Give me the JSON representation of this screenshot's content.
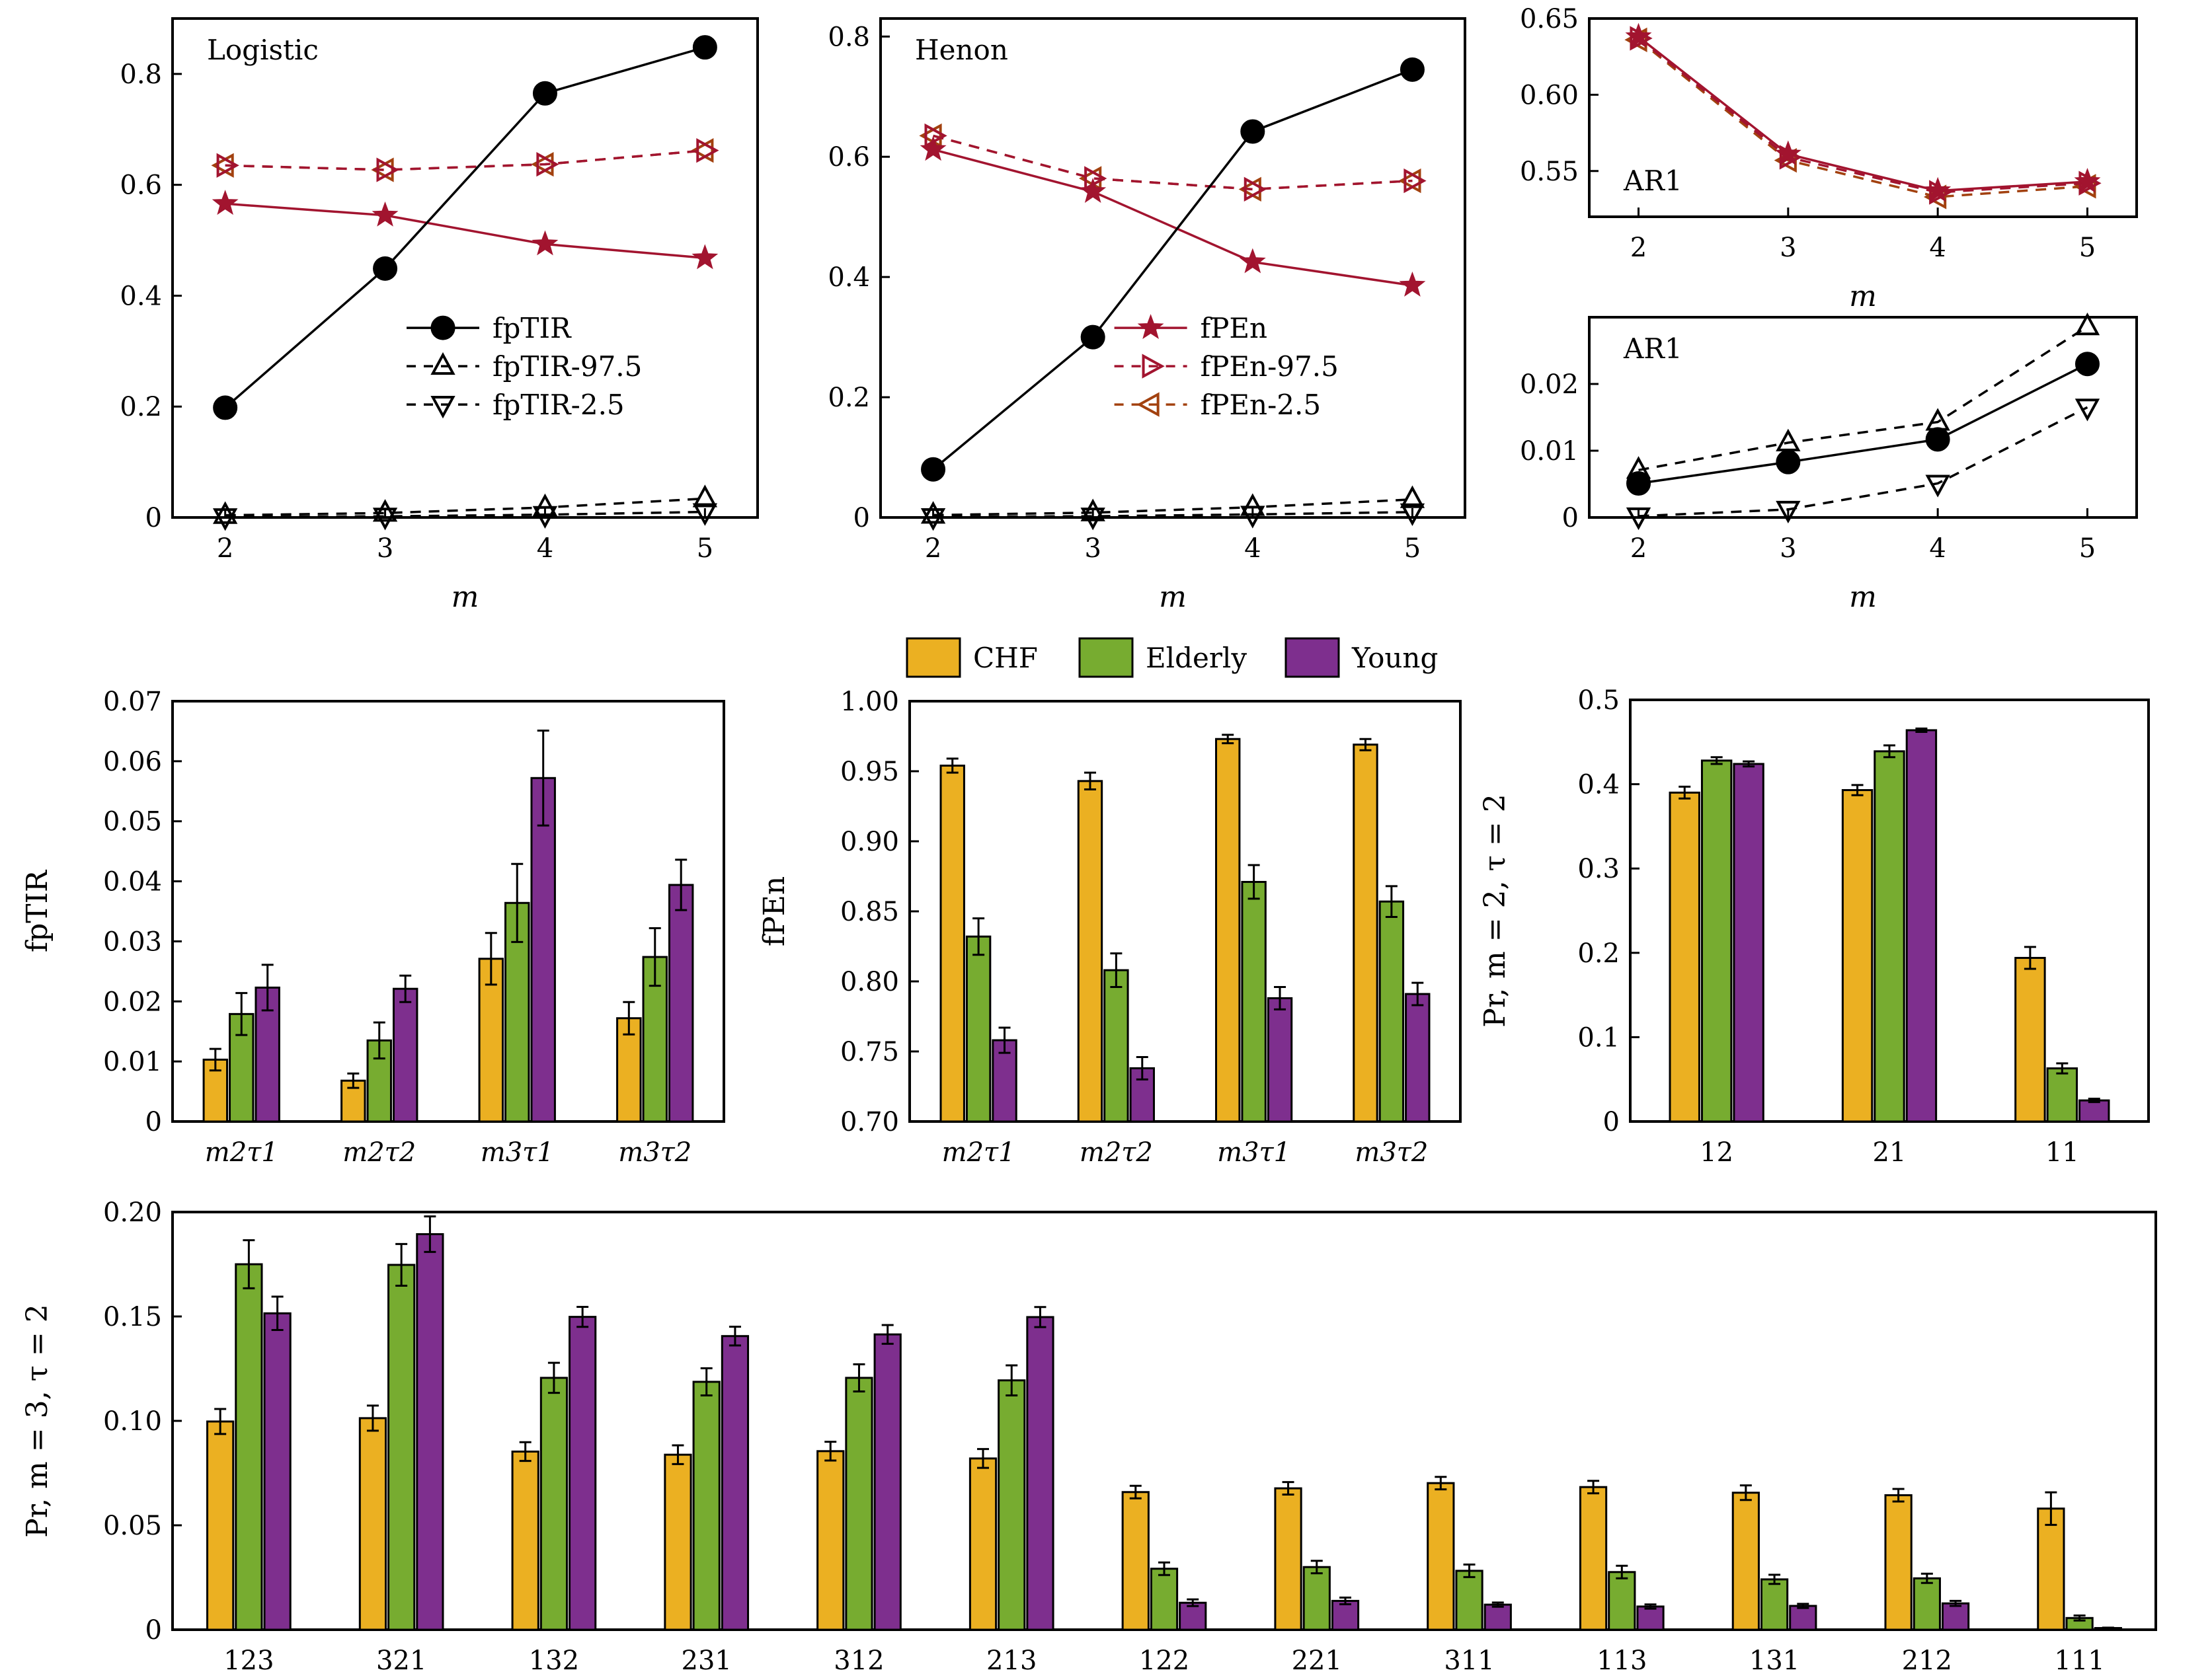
{
  "colors": {
    "CHF": "#EBB022",
    "Elderly": "#77AC30",
    "Young": "#7E2F8E",
    "fpTIR": "#000000",
    "fPEn": "#A2142F",
    "fPEn_bound": "#A2410F"
  },
  "chart_data": [
    {
      "id": "logistic",
      "type": "line",
      "panel_label": "Logistic",
      "xlabel": "m",
      "ylabel": "",
      "x": [
        2,
        3,
        4,
        5
      ],
      "xticks": [
        "2",
        "3",
        "4",
        "5"
      ],
      "ylim": [
        0,
        0.9
      ],
      "yticks": [
        0,
        0.2,
        0.4,
        0.6,
        0.8
      ],
      "yticklabels": [
        "0",
        "0.2",
        "0.4",
        "0.6",
        "0.8"
      ],
      "legend": {
        "placement": "center-right",
        "entries": [
          "fpTIR",
          "fpTIR-97.5",
          "fpTIR-2.5"
        ]
      },
      "series": [
        {
          "name": "fpTIR",
          "style": "solid",
          "marker": "circle",
          "color": "#000000",
          "values": [
            0.198,
            0.449,
            0.765,
            0.848
          ]
        },
        {
          "name": "fpTIR-97.5",
          "style": "dashed",
          "marker": "triangle-up",
          "color": "#000000",
          "values": [
            0.004,
            0.008,
            0.018,
            0.034
          ]
        },
        {
          "name": "fpTIR-2.5",
          "style": "dashed",
          "marker": "triangle-down",
          "color": "#000000",
          "values": [
            0.001,
            0.002,
            0.005,
            0.01
          ]
        },
        {
          "name": "fPEn",
          "style": "solid",
          "marker": "star",
          "color": "#A2142F",
          "values": [
            0.566,
            0.545,
            0.493,
            0.468
          ]
        },
        {
          "name": "fPEn-97.5",
          "style": "dashed",
          "marker": "triangle-right",
          "color": "#A2142F",
          "values": [
            0.635,
            0.627,
            0.637,
            0.662
          ]
        },
        {
          "name": "fPEn-2.5",
          "style": "dashed",
          "marker": "triangle-left",
          "color": "#A2410F",
          "values": [
            0.635,
            0.627,
            0.637,
            0.662
          ]
        }
      ]
    },
    {
      "id": "henon",
      "type": "line",
      "panel_label": "Henon",
      "xlabel": "m",
      "ylabel": "",
      "x": [
        2,
        3,
        4,
        5
      ],
      "xticks": [
        "2",
        "3",
        "4",
        "5"
      ],
      "ylim": [
        0,
        0.83
      ],
      "yticks": [
        0,
        0.2,
        0.4,
        0.6,
        0.8
      ],
      "yticklabels": [
        "0",
        "0.2",
        "0.4",
        "0.6",
        "0.8"
      ],
      "legend": {
        "placement": "center-right",
        "entries": [
          "fPEn",
          "fPEn-97.5",
          "fPEn-2.5"
        ]
      },
      "series": [
        {
          "name": "fpTIR",
          "style": "solid",
          "marker": "circle",
          "color": "#000000",
          "values": [
            0.08,
            0.3,
            0.642,
            0.745
          ]
        },
        {
          "name": "fpTIR-97.5",
          "style": "dashed",
          "marker": "triangle-up",
          "color": "#000000",
          "values": [
            0.004,
            0.008,
            0.017,
            0.03
          ]
        },
        {
          "name": "fpTIR-2.5",
          "style": "dashed",
          "marker": "triangle-down",
          "color": "#000000",
          "values": [
            0.001,
            0.002,
            0.005,
            0.009
          ]
        },
        {
          "name": "fPEn",
          "style": "solid",
          "marker": "star",
          "color": "#A2142F",
          "values": [
            0.612,
            0.542,
            0.425,
            0.386
          ]
        },
        {
          "name": "fPEn-97.5",
          "style": "dashed",
          "marker": "triangle-right",
          "color": "#A2142F",
          "values": [
            0.635,
            0.564,
            0.546,
            0.56
          ]
        },
        {
          "name": "fPEn-2.5",
          "style": "dashed",
          "marker": "triangle-left",
          "color": "#A2410F",
          "values": [
            0.635,
            0.564,
            0.546,
            0.56
          ]
        }
      ]
    },
    {
      "id": "ar1-fpen",
      "type": "line",
      "panel_label": "AR1",
      "xlabel": "m",
      "ylabel": "",
      "x": [
        2,
        3,
        4,
        5
      ],
      "xticks": [
        "2",
        "3",
        "4",
        "5"
      ],
      "ylim": [
        0.52,
        0.65
      ],
      "yticks": [
        0.55,
        0.6,
        0.65
      ],
      "yticklabels": [
        "0.55",
        "0.60",
        "0.65"
      ],
      "series": [
        {
          "name": "fPEn",
          "style": "solid",
          "marker": "star",
          "color": "#A2142F",
          "values": [
            0.638,
            0.561,
            0.537,
            0.543
          ]
        },
        {
          "name": "fPEn-97.5",
          "style": "dashed",
          "marker": "triangle-right",
          "color": "#A2142F",
          "values": [
            0.637,
            0.559,
            0.536,
            0.542
          ]
        },
        {
          "name": "fPEn-2.5",
          "style": "dashed",
          "marker": "triangle-left",
          "color": "#A2410F",
          "values": [
            0.636,
            0.557,
            0.533,
            0.54
          ]
        }
      ]
    },
    {
      "id": "ar1-fptir",
      "type": "line",
      "panel_label": "AR1",
      "xlabel": "m",
      "ylabel": "",
      "x": [
        2,
        3,
        4,
        5
      ],
      "xticks": [
        "2",
        "3",
        "4",
        "5"
      ],
      "ylim": [
        0,
        0.03
      ],
      "yticks": [
        0,
        0.01,
        0.02
      ],
      "yticklabels": [
        "0",
        "0.01",
        "0.02"
      ],
      "series": [
        {
          "name": "fpTIR",
          "style": "solid",
          "marker": "circle",
          "color": "#000000",
          "values": [
            0.0051,
            0.0083,
            0.0117,
            0.023
          ]
        },
        {
          "name": "fpTIR-97.5",
          "style": "dashed",
          "marker": "triangle-up",
          "color": "#000000",
          "values": [
            0.0071,
            0.0112,
            0.0143,
            0.0286
          ]
        },
        {
          "name": "fpTIR-2.5",
          "style": "dashed",
          "marker": "triangle-down",
          "color": "#000000",
          "values": [
            0.0002,
            0.0012,
            0.0051,
            0.0165
          ]
        }
      ]
    },
    {
      "id": "fptir-bars",
      "type": "bar",
      "ylabel": "fpTIR",
      "categories": [
        "m2τ1",
        "m2τ2",
        "m3τ1",
        "m3τ2"
      ],
      "ylim": [
        0,
        0.07
      ],
      "yticks": [
        0,
        0.01,
        0.02,
        0.03,
        0.04,
        0.05,
        0.06,
        0.07
      ],
      "yticklabels": [
        "0",
        "0.01",
        "0.02",
        "0.03",
        "0.04",
        "0.05",
        "0.06",
        "0.07"
      ],
      "series": [
        {
          "name": "CHF",
          "values": [
            0.0103,
            0.0068,
            0.0271,
            0.0172
          ],
          "errors": [
            0.0018,
            0.0012,
            0.0043,
            0.0027
          ]
        },
        {
          "name": "Elderly",
          "values": [
            0.0179,
            0.0135,
            0.0364,
            0.0274
          ],
          "errors": [
            0.0035,
            0.003,
            0.0065,
            0.0048
          ]
        },
        {
          "name": "Young",
          "values": [
            0.0223,
            0.0221,
            0.0572,
            0.0394
          ],
          "errors": [
            0.0038,
            0.0022,
            0.0079,
            0.0042
          ]
        }
      ]
    },
    {
      "id": "fpen-bars",
      "type": "bar",
      "ylabel": "fPEn",
      "categories": [
        "m2τ1",
        "m2τ2",
        "m3τ1",
        "m3τ2"
      ],
      "ylim": [
        0.7,
        1.0
      ],
      "yticks": [
        0.7,
        0.75,
        0.8,
        0.85,
        0.9,
        0.95,
        1.0
      ],
      "yticklabels": [
        "0.70",
        "0.75",
        "0.80",
        "0.85",
        "0.90",
        "0.95",
        "1.00"
      ],
      "series": [
        {
          "name": "CHF",
          "values": [
            0.954,
            0.943,
            0.973,
            0.969
          ],
          "errors": [
            0.005,
            0.006,
            0.003,
            0.004
          ]
        },
        {
          "name": "Elderly",
          "values": [
            0.832,
            0.808,
            0.871,
            0.857
          ],
          "errors": [
            0.013,
            0.012,
            0.012,
            0.011
          ]
        },
        {
          "name": "Young",
          "values": [
            0.758,
            0.738,
            0.788,
            0.791
          ],
          "errors": [
            0.009,
            0.008,
            0.008,
            0.008
          ]
        }
      ]
    },
    {
      "id": "pr-m2-bars",
      "type": "bar",
      "ylabel": "Pr, m = 2, τ = 2",
      "categories": [
        "12",
        "21",
        "11"
      ],
      "ylim": [
        0,
        0.5
      ],
      "yticks": [
        0,
        0.1,
        0.2,
        0.3,
        0.4,
        0.5
      ],
      "yticklabels": [
        "0",
        "0.1",
        "0.2",
        "0.3",
        "0.4",
        "0.5"
      ],
      "series": [
        {
          "name": "CHF",
          "values": [
            0.39,
            0.393,
            0.194
          ],
          "errors": [
            0.007,
            0.006,
            0.013
          ]
        },
        {
          "name": "Elderly",
          "values": [
            0.428,
            0.439,
            0.063
          ],
          "errors": [
            0.004,
            0.007,
            0.006
          ]
        },
        {
          "name": "Young",
          "values": [
            0.424,
            0.464,
            0.025
          ],
          "errors": [
            0.003,
            0.002,
            0.002
          ]
        }
      ]
    },
    {
      "id": "pr-m3-bars",
      "type": "bar",
      "ylabel": "Pr, m = 3, τ = 2",
      "categories": [
        "123",
        "321",
        "132",
        "231",
        "312",
        "213",
        "122",
        "221",
        "311",
        "113",
        "131",
        "212",
        "111"
      ],
      "ylim": [
        0,
        0.2
      ],
      "yticks": [
        0,
        0.05,
        0.1,
        0.15,
        0.2
      ],
      "yticklabels": [
        "0",
        "0.05",
        "0.10",
        "0.15",
        "0.20"
      ],
      "series": [
        {
          "name": "CHF",
          "values": [
            0.0997,
            0.1013,
            0.0853,
            0.0838,
            0.0855,
            0.082,
            0.0659,
            0.0677,
            0.0702,
            0.0683,
            0.0656,
            0.0644,
            0.058
          ],
          "errors": [
            0.006,
            0.006,
            0.0045,
            0.0045,
            0.0045,
            0.0045,
            0.003,
            0.003,
            0.003,
            0.003,
            0.0035,
            0.003,
            0.0078
          ]
        },
        {
          "name": "Elderly",
          "values": [
            0.175,
            0.1747,
            0.1206,
            0.1187,
            0.1206,
            0.1194,
            0.0292,
            0.03,
            0.0282,
            0.0276,
            0.0241,
            0.0246,
            0.0056
          ]
        },
        {
          "name": "Young",
          "values": [
            0.1515,
            0.1894,
            0.1498,
            0.1406,
            0.1414,
            0.1497,
            0.0129,
            0.0138,
            0.012,
            0.0111,
            0.0114,
            0.0126,
            0.0008
          ]
        }
      ],
      "elderly_errors": [
        0.0115,
        0.01,
        0.0072,
        0.0065,
        0.0065,
        0.0072,
        0.003,
        0.003,
        0.003,
        0.003,
        0.0022,
        0.0022,
        0.0012
      ],
      "young_errors": [
        0.008,
        0.0085,
        0.0048,
        0.0045,
        0.0045,
        0.0048,
        0.0016,
        0.0016,
        0.001,
        0.001,
        0.001,
        0.0012,
        0.0002
      ]
    }
  ],
  "bar_legend": {
    "placement": "top-center",
    "entries": [
      "CHF",
      "Elderly",
      "Young"
    ]
  }
}
